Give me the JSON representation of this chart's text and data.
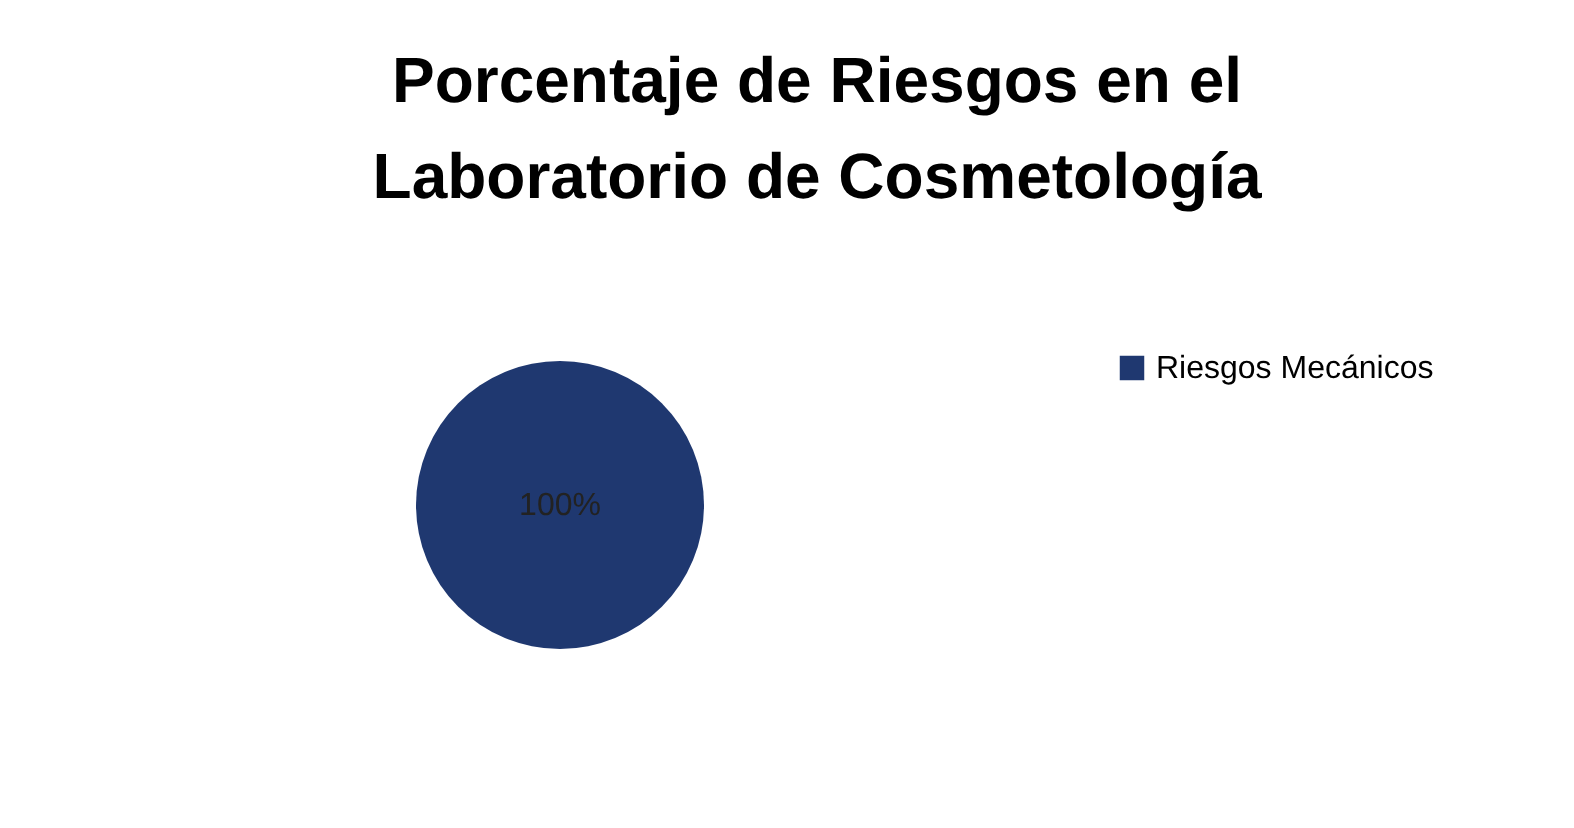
{
  "chart_data": {
    "type": "pie",
    "title": "Porcentaje de Riesgos en el Laboratorio de Cosmetología",
    "categories": [
      "Riesgos Mecánicos"
    ],
    "values": [
      100
    ],
    "colors": [
      "#1f3870"
    ],
    "value_labels": [
      "100%"
    ],
    "legend": "right"
  }
}
